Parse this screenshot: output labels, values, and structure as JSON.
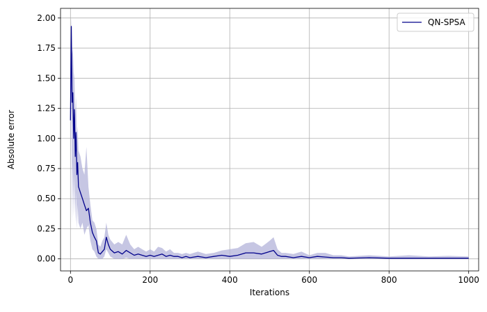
{
  "chart_data": {
    "type": "line",
    "title": "",
    "xlabel": "Iterations",
    "ylabel": "Absolute error",
    "xlim": [
      -25,
      1025
    ],
    "ylim": [
      -0.1,
      2.08
    ],
    "xticks": [
      0,
      200,
      400,
      600,
      800,
      1000
    ],
    "yticks": [
      0.0,
      0.25,
      0.5,
      0.75,
      1.0,
      1.25,
      1.5,
      1.75,
      2.0
    ],
    "xtick_labels": [
      "0",
      "200",
      "400",
      "600",
      "800",
      "1000"
    ],
    "ytick_labels": [
      "0.00",
      "0.25",
      "0.50",
      "0.75",
      "1.00",
      "1.25",
      "1.50",
      "1.75",
      "2.00"
    ],
    "grid": true,
    "legend": {
      "position": "top-right",
      "entries": [
        "QN-SPSA"
      ]
    },
    "colors": {
      "line": "#00008b",
      "band": "#b3b3d9",
      "grid": "#b0b0b0"
    },
    "series": [
      {
        "name": "QN-SPSA",
        "x": [
          0,
          2,
          4,
          6,
          8,
          10,
          12,
          14,
          16,
          18,
          20,
          25,
          30,
          35,
          40,
          45,
          50,
          55,
          60,
          65,
          70,
          75,
          80,
          85,
          90,
          95,
          100,
          110,
          120,
          130,
          140,
          150,
          160,
          170,
          180,
          190,
          200,
          210,
          220,
          230,
          240,
          250,
          260,
          270,
          280,
          290,
          300,
          320,
          340,
          360,
          380,
          400,
          420,
          440,
          460,
          480,
          500,
          510,
          520,
          530,
          540,
          560,
          580,
          600,
          620,
          640,
          660,
          680,
          700,
          750,
          800,
          850,
          900,
          950,
          1000
        ],
        "y": [
          1.15,
          1.93,
          1.3,
          1.38,
          1.0,
          1.24,
          0.85,
          1.05,
          0.7,
          0.8,
          0.6,
          0.55,
          0.5,
          0.45,
          0.4,
          0.42,
          0.3,
          0.22,
          0.18,
          0.15,
          0.05,
          0.04,
          0.06,
          0.08,
          0.18,
          0.12,
          0.08,
          0.05,
          0.06,
          0.04,
          0.07,
          0.05,
          0.03,
          0.04,
          0.03,
          0.02,
          0.03,
          0.02,
          0.03,
          0.04,
          0.02,
          0.03,
          0.02,
          0.02,
          0.01,
          0.02,
          0.01,
          0.02,
          0.01,
          0.02,
          0.03,
          0.02,
          0.03,
          0.05,
          0.05,
          0.04,
          0.06,
          0.07,
          0.03,
          0.02,
          0.02,
          0.01,
          0.02,
          0.01,
          0.02,
          0.015,
          0.01,
          0.01,
          0.005,
          0.01,
          0.005,
          0.005,
          0.005,
          0.005,
          0.005
        ],
        "lower": [
          0.5,
          1.5,
          0.3,
          0.8,
          0.35,
          0.7,
          0.3,
          0.55,
          0.25,
          0.45,
          0.3,
          0.25,
          0.3,
          0.2,
          0.25,
          0.28,
          0.15,
          0.08,
          0.06,
          0.02,
          0.0,
          0.0,
          0.0,
          0.02,
          0.08,
          0.05,
          0.02,
          0.0,
          0.0,
          0.0,
          0.01,
          0.0,
          0.0,
          0.0,
          0.0,
          0.0,
          0.0,
          0.0,
          0.0,
          0.0,
          0.0,
          0.0,
          0.0,
          0.0,
          0.0,
          0.0,
          0.0,
          0.0,
          0.0,
          0.0,
          0.0,
          0.0,
          0.0,
          0.0,
          0.0,
          0.0,
          0.0,
          0.0,
          0.0,
          0.0,
          0.0,
          0.0,
          0.0,
          0.0,
          0.0,
          0.0,
          0.0,
          0.0,
          0.0,
          0.0,
          0.0,
          0.0,
          0.0,
          0.0,
          0.0
        ],
        "upper": [
          1.6,
          2.0,
          1.7,
          1.75,
          1.55,
          1.5,
          1.2,
          1.35,
          1.0,
          1.1,
          0.9,
          0.85,
          0.75,
          0.7,
          0.93,
          0.6,
          0.45,
          0.32,
          0.3,
          0.25,
          0.12,
          0.1,
          0.15,
          0.18,
          0.3,
          0.2,
          0.16,
          0.12,
          0.14,
          0.12,
          0.2,
          0.12,
          0.08,
          0.1,
          0.08,
          0.06,
          0.08,
          0.06,
          0.1,
          0.09,
          0.06,
          0.08,
          0.05,
          0.05,
          0.04,
          0.05,
          0.04,
          0.06,
          0.04,
          0.05,
          0.07,
          0.08,
          0.09,
          0.13,
          0.14,
          0.1,
          0.15,
          0.18,
          0.08,
          0.05,
          0.05,
          0.04,
          0.06,
          0.03,
          0.05,
          0.05,
          0.03,
          0.03,
          0.02,
          0.03,
          0.02,
          0.03,
          0.02,
          0.025,
          0.02
        ]
      }
    ]
  }
}
